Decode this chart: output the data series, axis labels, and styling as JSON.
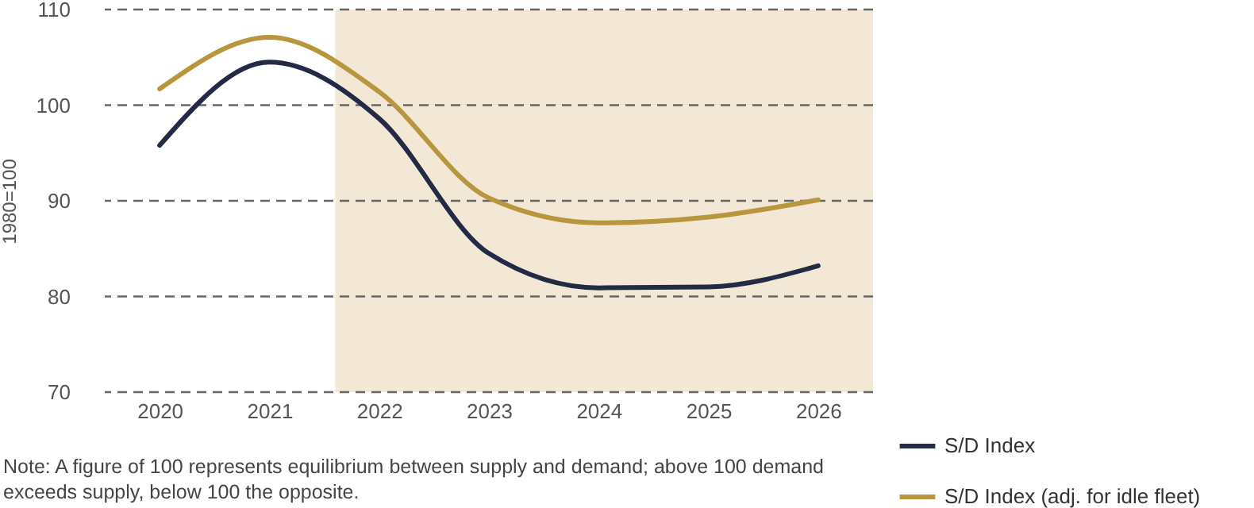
{
  "chart_data": {
    "type": "line",
    "ylabel": "1980=100",
    "x": [
      2020,
      2021,
      2022,
      2023,
      2024,
      2025,
      2026
    ],
    "xlim": [
      2019.5,
      2026.5
    ],
    "xticks": [
      2020,
      2021,
      2022,
      2023,
      2024,
      2025,
      2026
    ],
    "ylim": [
      70,
      110
    ],
    "yticks": [
      70,
      80,
      90,
      100,
      110
    ],
    "series": [
      {
        "name": "S/D Index",
        "color": "#232a45",
        "values": [
          95.8,
          104.5,
          98.6,
          84.5,
          80.9,
          81.0,
          83.2
        ]
      },
      {
        "name": "S/D Index (adj. for idle fleet)",
        "color": "#b8963e",
        "values": [
          101.7,
          107.1,
          101.4,
          90.3,
          87.7,
          88.3,
          90.1
        ]
      }
    ],
    "bands": [
      {
        "axis": "x",
        "from": 2021.6,
        "to": 2026.5,
        "color": "#f2e8d5"
      }
    ],
    "grid": "y",
    "legend": "bottom right",
    "line_style": "solid",
    "marker": "none",
    "annotations": [
      "Note: A figure of 100 represents equilibrium between supply and demand; above 100 demand exceeds supply, below 100 the opposite."
    ]
  }
}
